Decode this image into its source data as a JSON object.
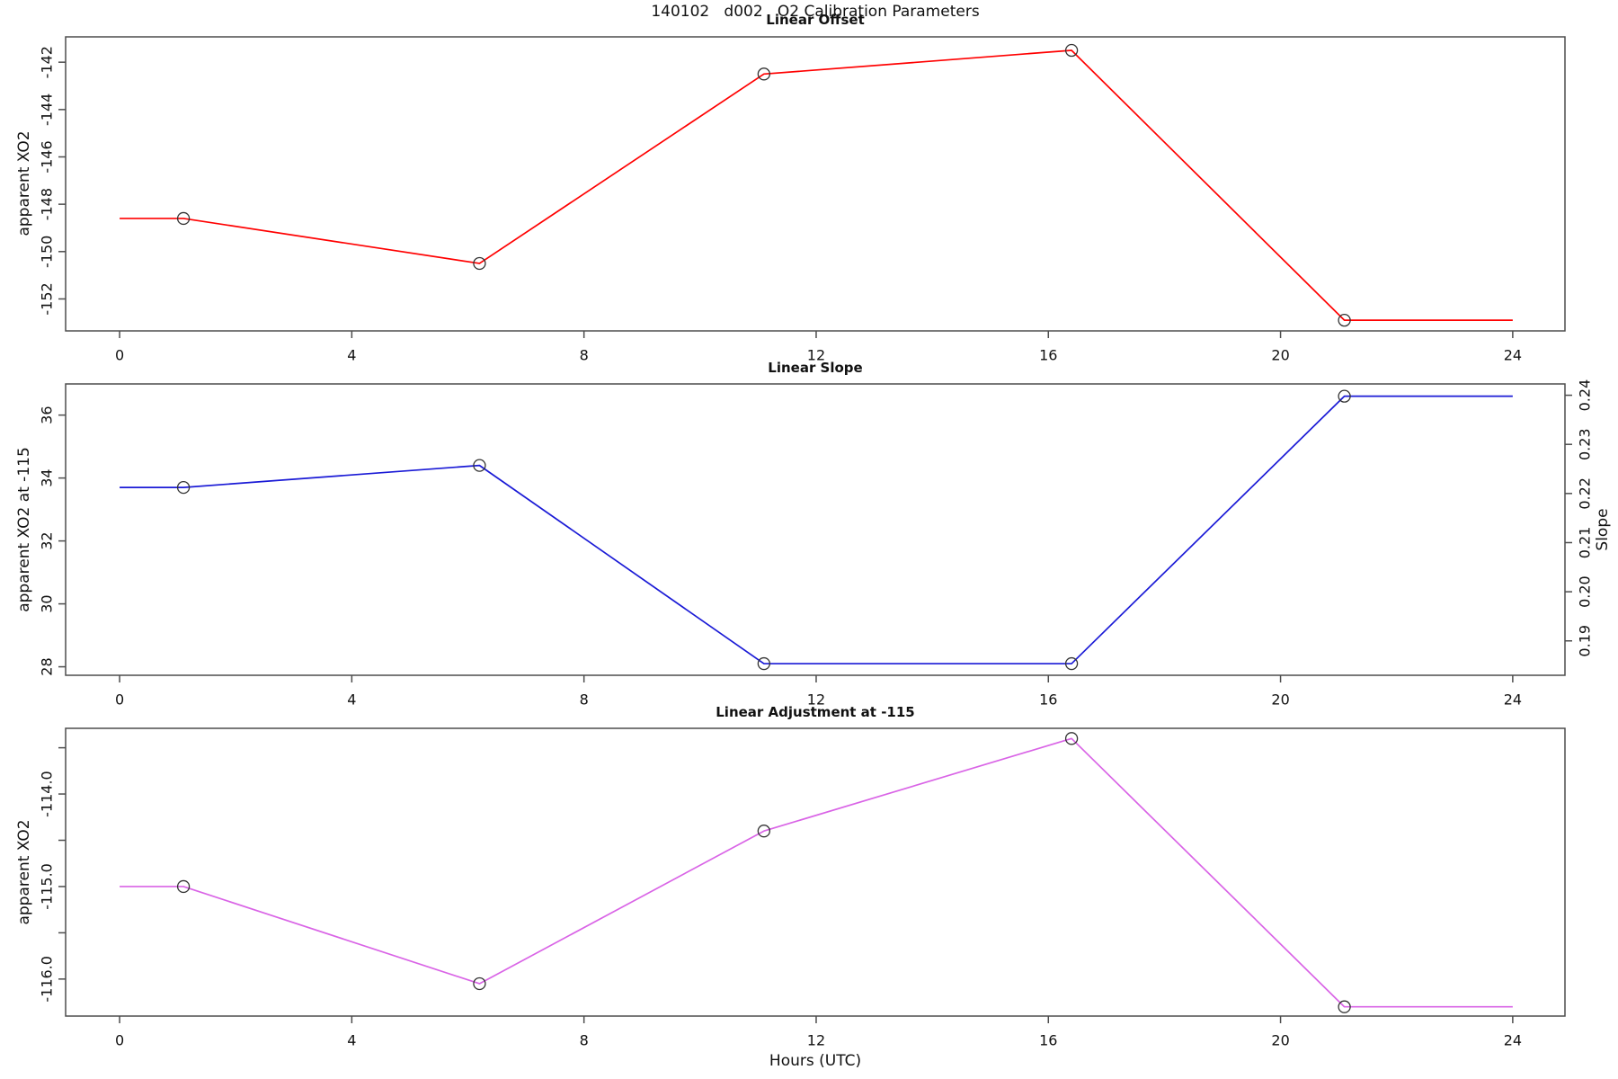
{
  "title": "140102   d002   O2 Calibration Parameters",
  "x_axis": {
    "label": "Hours (UTC)",
    "tick_values": [
      0,
      4,
      8,
      12,
      16,
      20,
      24
    ],
    "tick_labels": [
      "0",
      "4",
      "8",
      "12",
      "16",
      "20",
      "24"
    ],
    "lim": [
      -0.93,
      24.9
    ]
  },
  "chart_data": [
    {
      "type": "line",
      "title": "Linear Offset",
      "ylabel": "apparent XO2",
      "color": "#ff0000",
      "points": {
        "x": [
          1.1,
          6.2,
          11.1,
          16.4,
          21.1
        ],
        "y": [
          -148.6,
          -150.5,
          -142.5,
          -141.5,
          -152.9
        ]
      },
      "line": {
        "x": [
          0,
          1.1,
          6.2,
          11.1,
          16.4,
          21.1,
          24
        ],
        "y": [
          -148.6,
          -148.6,
          -150.5,
          -142.5,
          -141.5,
          -152.9,
          -152.9
        ]
      },
      "y_axis": {
        "tick_values": [
          -152,
          -150,
          -148,
          -146,
          -144,
          -142
        ],
        "tick_labels": [
          "-152",
          "-150",
          "-148",
          "-146",
          "-144",
          "-142"
        ],
        "lim": [
          -153.35,
          -140.93
        ]
      },
      "grid": false,
      "legend": null
    },
    {
      "type": "line",
      "title": "Linear Slope",
      "ylabel": "apparent XO2 at -115",
      "ylabel_right": "Slope",
      "color": "#1a1ad6",
      "points": {
        "x": [
          1.1,
          6.2,
          11.1,
          16.4,
          21.1
        ],
        "y": [
          33.7,
          34.4,
          28.1,
          28.1,
          36.6
        ],
        "y_right": [
          0.221,
          0.226,
          0.185,
          0.185,
          0.24
        ]
      },
      "line": {
        "x": [
          0,
          1.1,
          6.2,
          11.1,
          16.4,
          21.1,
          24
        ],
        "y": [
          33.7,
          33.7,
          34.4,
          28.1,
          28.1,
          36.6,
          36.6
        ]
      },
      "y_axis": {
        "tick_values": [
          28,
          30,
          32,
          34,
          36
        ],
        "tick_labels": [
          "28",
          "30",
          "32",
          "34",
          "36"
        ],
        "lim": [
          27.73,
          36.99
        ]
      },
      "right_axis": {
        "tick_values": [
          0.19,
          0.2,
          0.21,
          0.22,
          0.23,
          0.24
        ],
        "tick_labels": [
          "0.19",
          "0.20",
          "0.21",
          "0.22",
          "0.23",
          "0.24"
        ],
        "lim": [
          0.183,
          0.2423
        ]
      },
      "grid": false,
      "legend": null
    },
    {
      "type": "line",
      "title": "Linear Adjustment at -115",
      "ylabel": "apparent XO2",
      "color": "#d964e6",
      "points": {
        "x": [
          1.1,
          6.2,
          11.1,
          16.4,
          21.1
        ],
        "y": [
          -115.0,
          -116.05,
          -114.4,
          -113.4,
          -116.3
        ]
      },
      "line": {
        "x": [
          0,
          1.1,
          6.2,
          11.1,
          16.4,
          21.1,
          24
        ],
        "y": [
          -115.0,
          -115.0,
          -116.05,
          -114.4,
          -113.4,
          -116.3,
          -116.3
        ]
      },
      "y_axis": {
        "tick_values": [
          -116.0,
          -115.5,
          -115.0,
          -114.5,
          -114.0,
          -113.5
        ],
        "tick_labels": [
          "-116.0",
          "",
          "-115.0",
          "",
          "-114.0",
          ""
        ],
        "lim": [
          -116.4,
          -113.29
        ]
      },
      "grid": false,
      "legend": null
    }
  ]
}
